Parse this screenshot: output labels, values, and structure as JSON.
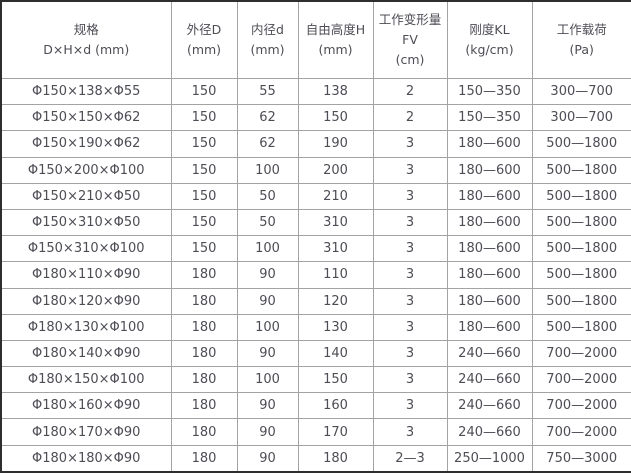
{
  "table": {
    "name": "spring-specification-table",
    "columns": [
      {
        "id": "spec",
        "lines": [
          "规格",
          "D×H×d (mm)"
        ]
      },
      {
        "id": "outer-diameter",
        "lines": [
          "外径D",
          "(mm)"
        ]
      },
      {
        "id": "inner-diameter",
        "lines": [
          "内径d",
          "(mm)"
        ]
      },
      {
        "id": "free-height",
        "lines": [
          "自由高度H",
          "(mm)"
        ]
      },
      {
        "id": "working-deformation",
        "lines": [
          "工作变形量",
          "FV",
          "(cm)"
        ]
      },
      {
        "id": "stiffness",
        "lines": [
          "刚度KL",
          "(kg/cm)"
        ]
      },
      {
        "id": "working-load",
        "lines": [
          "工作载荷",
          "(Pa)"
        ]
      }
    ],
    "rows": [
      [
        "Φ150×138×Φ55",
        "150",
        "55",
        "138",
        "2",
        "150—350",
        "300—700"
      ],
      [
        "Φ150×150×Φ62",
        "150",
        "62",
        "150",
        "2",
        "150—350",
        "300—700"
      ],
      [
        "Φ150×190×Φ62",
        "150",
        "62",
        "190",
        "3",
        "180—600",
        "500—1800"
      ],
      [
        "Φ150×200×Φ100",
        "150",
        "100",
        "200",
        "3",
        "180—600",
        "500—1800"
      ],
      [
        "Φ150×210×Φ50",
        "150",
        "50",
        "210",
        "3",
        "180—600",
        "500—1800"
      ],
      [
        "Φ150×310×Φ50",
        "150",
        "50",
        "310",
        "3",
        "180—600",
        "500—1800"
      ],
      [
        "Φ150×310×Φ100",
        "150",
        "100",
        "310",
        "3",
        "180—600",
        "500—1800"
      ],
      [
        "Φ180×110×Φ90",
        "180",
        "90",
        "110",
        "3",
        "180—600",
        "500—1800"
      ],
      [
        "Φ180×120×Φ90",
        "180",
        "90",
        "120",
        "3",
        "180—600",
        "500—1800"
      ],
      [
        "Φ180×130×Φ100",
        "180",
        "100",
        "130",
        "3",
        "180—600",
        "500—1800"
      ],
      [
        "Φ180×140×Φ90",
        "180",
        "90",
        "140",
        "3",
        "240—660",
        "700—2000"
      ],
      [
        "Φ180×150×Φ100",
        "180",
        "100",
        "150",
        "3",
        "240—660",
        "700—2000"
      ],
      [
        "Φ180×160×Φ90",
        "180",
        "90",
        "160",
        "3",
        "240—660",
        "700—2000"
      ],
      [
        "Φ180×170×Φ90",
        "180",
        "90",
        "170",
        "3",
        "240—660",
        "700—2000"
      ],
      [
        "Φ180×180×Φ90",
        "180",
        "90",
        "180",
        "2—3",
        "250—1000",
        "750—3000"
      ]
    ],
    "colors": {
      "outer_border": "#2e2e2e",
      "grid_line": "#a3a3a3",
      "text": "#4d4d55",
      "background": "#ffffff"
    }
  }
}
